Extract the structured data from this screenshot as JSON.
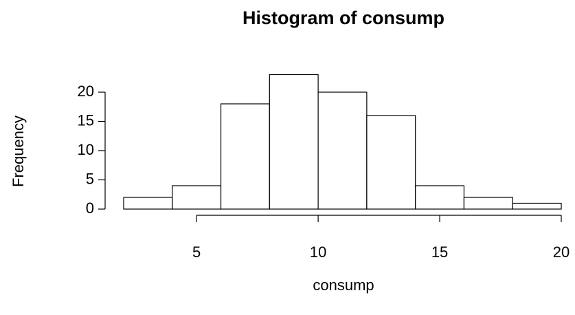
{
  "chart_data": {
    "type": "histogram",
    "title": "Histogram of consump",
    "x_label": "consump",
    "y_label": "Frequency",
    "bins": [
      2,
      4,
      6,
      8,
      10,
      12,
      14,
      16,
      18,
      20
    ],
    "values": [
      2,
      4,
      18,
      23,
      20,
      16,
      4,
      2,
      1
    ],
    "color": "#ffffff",
    "xlim": [
      2,
      20
    ],
    "xticks": [
      5,
      10,
      15,
      20
    ],
    "ylim": [
      0,
      23
    ],
    "yticks": [
      0,
      5,
      10,
      15,
      20
    ],
    "grid": false
  }
}
